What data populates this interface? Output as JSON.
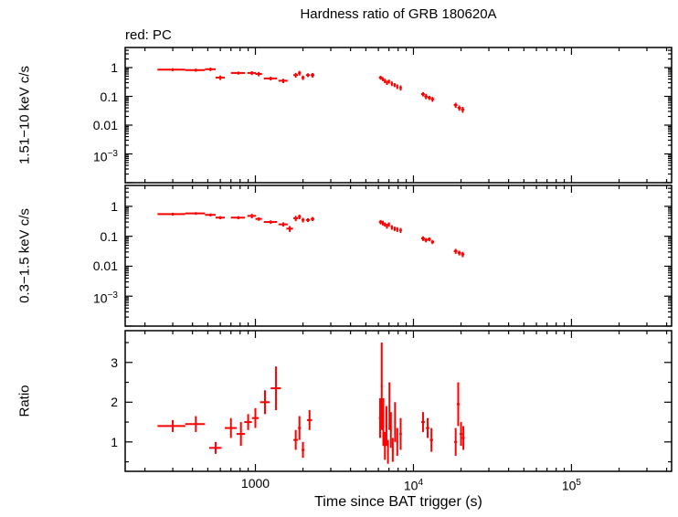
{
  "chart_data": {
    "type": "scatter",
    "title": "Hardness ratio of GRB 180620A",
    "annotation": "red: PC",
    "xlabel": "Time since BAT trigger (s)",
    "series_color": "#ff0000",
    "axis_color": "#000000",
    "x_scale": "log",
    "xlim": [
      150,
      430000
    ],
    "x_major_ticks": [
      {
        "v": 1000,
        "t": "1000"
      },
      {
        "v": 10000,
        "t": "10",
        "e": "4"
      },
      {
        "v": 100000,
        "t": "10",
        "e": "5"
      }
    ],
    "panels": [
      {
        "name": "hard-band-rate",
        "ylabel": "1.51−10 keV c/s",
        "yscale": "log",
        "ylim": [
          0.0001,
          5
        ],
        "ytick_labels": [
          {
            "v": 1,
            "t": "1"
          },
          {
            "v": 0.1,
            "t": "0.1"
          },
          {
            "v": 0.01,
            "t": "0.01"
          },
          {
            "v": 0.001,
            "t": "10",
            "e": "−3"
          }
        ],
        "points": [
          [
            300,
            60,
            0.85,
            0.1
          ],
          [
            420,
            60,
            0.82,
            0.1
          ],
          [
            520,
            40,
            0.88,
            0.12
          ],
          [
            600,
            40,
            0.45,
            0.08
          ],
          [
            780,
            80,
            0.65,
            0.08
          ],
          [
            950,
            60,
            0.65,
            0.1
          ],
          [
            1050,
            50,
            0.6,
            0.1
          ],
          [
            1250,
            120,
            0.42,
            0.06
          ],
          [
            1500,
            100,
            0.35,
            0.06
          ],
          [
            1800,
            60,
            0.55,
            0.1
          ],
          [
            1900,
            40,
            0.65,
            0.12
          ],
          [
            2000,
            40,
            0.45,
            0.08
          ],
          [
            2150,
            60,
            0.55,
            0.08
          ],
          [
            2300,
            60,
            0.55,
            0.1
          ],
          [
            6200,
            150,
            0.45,
            0.07
          ],
          [
            6400,
            100,
            0.4,
            0.06
          ],
          [
            6600,
            100,
            0.35,
            0.06
          ],
          [
            6800,
            100,
            0.3,
            0.05
          ],
          [
            7000,
            100,
            0.33,
            0.05
          ],
          [
            7300,
            120,
            0.28,
            0.05
          ],
          [
            7600,
            120,
            0.25,
            0.04
          ],
          [
            7900,
            120,
            0.22,
            0.04
          ],
          [
            8300,
            150,
            0.2,
            0.04
          ],
          [
            11500,
            300,
            0.12,
            0.02
          ],
          [
            12000,
            300,
            0.1,
            0.02
          ],
          [
            12600,
            300,
            0.09,
            0.015
          ],
          [
            13200,
            300,
            0.08,
            0.015
          ],
          [
            18500,
            500,
            0.05,
            0.01
          ],
          [
            19500,
            500,
            0.04,
            0.008
          ],
          [
            20500,
            500,
            0.035,
            0.008
          ]
        ]
      },
      {
        "name": "soft-band-rate",
        "ylabel": "0.3−1.5 keV c/s",
        "yscale": "log",
        "ylim": [
          0.0001,
          5
        ],
        "ytick_labels": [
          {
            "v": 1,
            "t": "1"
          },
          {
            "v": 0.1,
            "t": "0.1"
          },
          {
            "v": 0.01,
            "t": "0.01"
          },
          {
            "v": 0.001,
            "t": "10",
            "e": "−3"
          }
        ],
        "points": [
          [
            300,
            60,
            0.55,
            0.06
          ],
          [
            420,
            60,
            0.58,
            0.06
          ],
          [
            520,
            40,
            0.52,
            0.06
          ],
          [
            600,
            40,
            0.42,
            0.05
          ],
          [
            780,
            80,
            0.42,
            0.05
          ],
          [
            950,
            60,
            0.48,
            0.08
          ],
          [
            1050,
            50,
            0.38,
            0.05
          ],
          [
            1250,
            120,
            0.3,
            0.04
          ],
          [
            1500,
            100,
            0.25,
            0.04
          ],
          [
            1650,
            80,
            0.18,
            0.04
          ],
          [
            1800,
            60,
            0.4,
            0.08
          ],
          [
            1900,
            40,
            0.45,
            0.08
          ],
          [
            2000,
            40,
            0.35,
            0.06
          ],
          [
            2150,
            60,
            0.35,
            0.05
          ],
          [
            2300,
            60,
            0.38,
            0.06
          ],
          [
            6200,
            150,
            0.3,
            0.05
          ],
          [
            6400,
            100,
            0.28,
            0.05
          ],
          [
            6600,
            100,
            0.25,
            0.04
          ],
          [
            6800,
            100,
            0.22,
            0.04
          ],
          [
            7000,
            100,
            0.25,
            0.04
          ],
          [
            7300,
            120,
            0.2,
            0.035
          ],
          [
            7600,
            120,
            0.18,
            0.03
          ],
          [
            7900,
            120,
            0.17,
            0.03
          ],
          [
            8300,
            150,
            0.16,
            0.03
          ],
          [
            11500,
            300,
            0.085,
            0.015
          ],
          [
            12000,
            300,
            0.075,
            0.012
          ],
          [
            12600,
            300,
            0.08,
            0.012
          ],
          [
            13200,
            300,
            0.065,
            0.01
          ],
          [
            18500,
            500,
            0.032,
            0.006
          ],
          [
            19500,
            500,
            0.028,
            0.005
          ],
          [
            20500,
            500,
            0.025,
            0.005
          ]
        ]
      },
      {
        "name": "hardness-ratio",
        "ylabel": "Ratio",
        "yscale": "linear",
        "ylim": [
          0.26,
          3.8
        ],
        "ytick_labels": [
          {
            "v": 1,
            "t": "1"
          },
          {
            "v": 2,
            "t": "2"
          },
          {
            "v": 3,
            "t": "3"
          }
        ],
        "points": [
          [
            300,
            60,
            1.4,
            0.15
          ],
          [
            420,
            60,
            1.45,
            0.2
          ],
          [
            560,
            50,
            0.85,
            0.15
          ],
          [
            700,
            60,
            1.35,
            0.25
          ],
          [
            810,
            50,
            1.2,
            0.3
          ],
          [
            900,
            50,
            1.5,
            0.2
          ],
          [
            1000,
            50,
            1.6,
            0.25
          ],
          [
            1150,
            80,
            2.0,
            0.3
          ],
          [
            1350,
            100,
            2.35,
            0.55
          ],
          [
            1800,
            60,
            1.05,
            0.25
          ],
          [
            1900,
            40,
            1.35,
            0.3
          ],
          [
            2000,
            40,
            0.8,
            0.2
          ],
          [
            2200,
            80,
            1.55,
            0.25
          ],
          [
            6150,
            100,
            1.6,
            0.5
          ],
          [
            6300,
            80,
            2.4,
            1.1
          ],
          [
            6450,
            80,
            1.5,
            0.6
          ],
          [
            6600,
            80,
            0.9,
            0.35
          ],
          [
            6750,
            80,
            1.4,
            0.5
          ],
          [
            6900,
            80,
            0.75,
            0.3
          ],
          [
            7050,
            80,
            1.9,
            0.6
          ],
          [
            7200,
            80,
            1.3,
            0.45
          ],
          [
            7400,
            100,
            0.8,
            0.3
          ],
          [
            7650,
            100,
            1.5,
            0.5
          ],
          [
            7900,
            100,
            1.0,
            0.35
          ],
          [
            8300,
            150,
            1.2,
            0.4
          ],
          [
            11500,
            300,
            1.5,
            0.25
          ],
          [
            12300,
            300,
            1.35,
            0.25
          ],
          [
            13000,
            300,
            1.05,
            0.3
          ],
          [
            18500,
            400,
            1.0,
            0.35
          ],
          [
            19200,
            400,
            1.95,
            0.55
          ],
          [
            20000,
            400,
            1.2,
            0.3
          ],
          [
            20700,
            400,
            1.1,
            0.3
          ]
        ]
      }
    ]
  }
}
